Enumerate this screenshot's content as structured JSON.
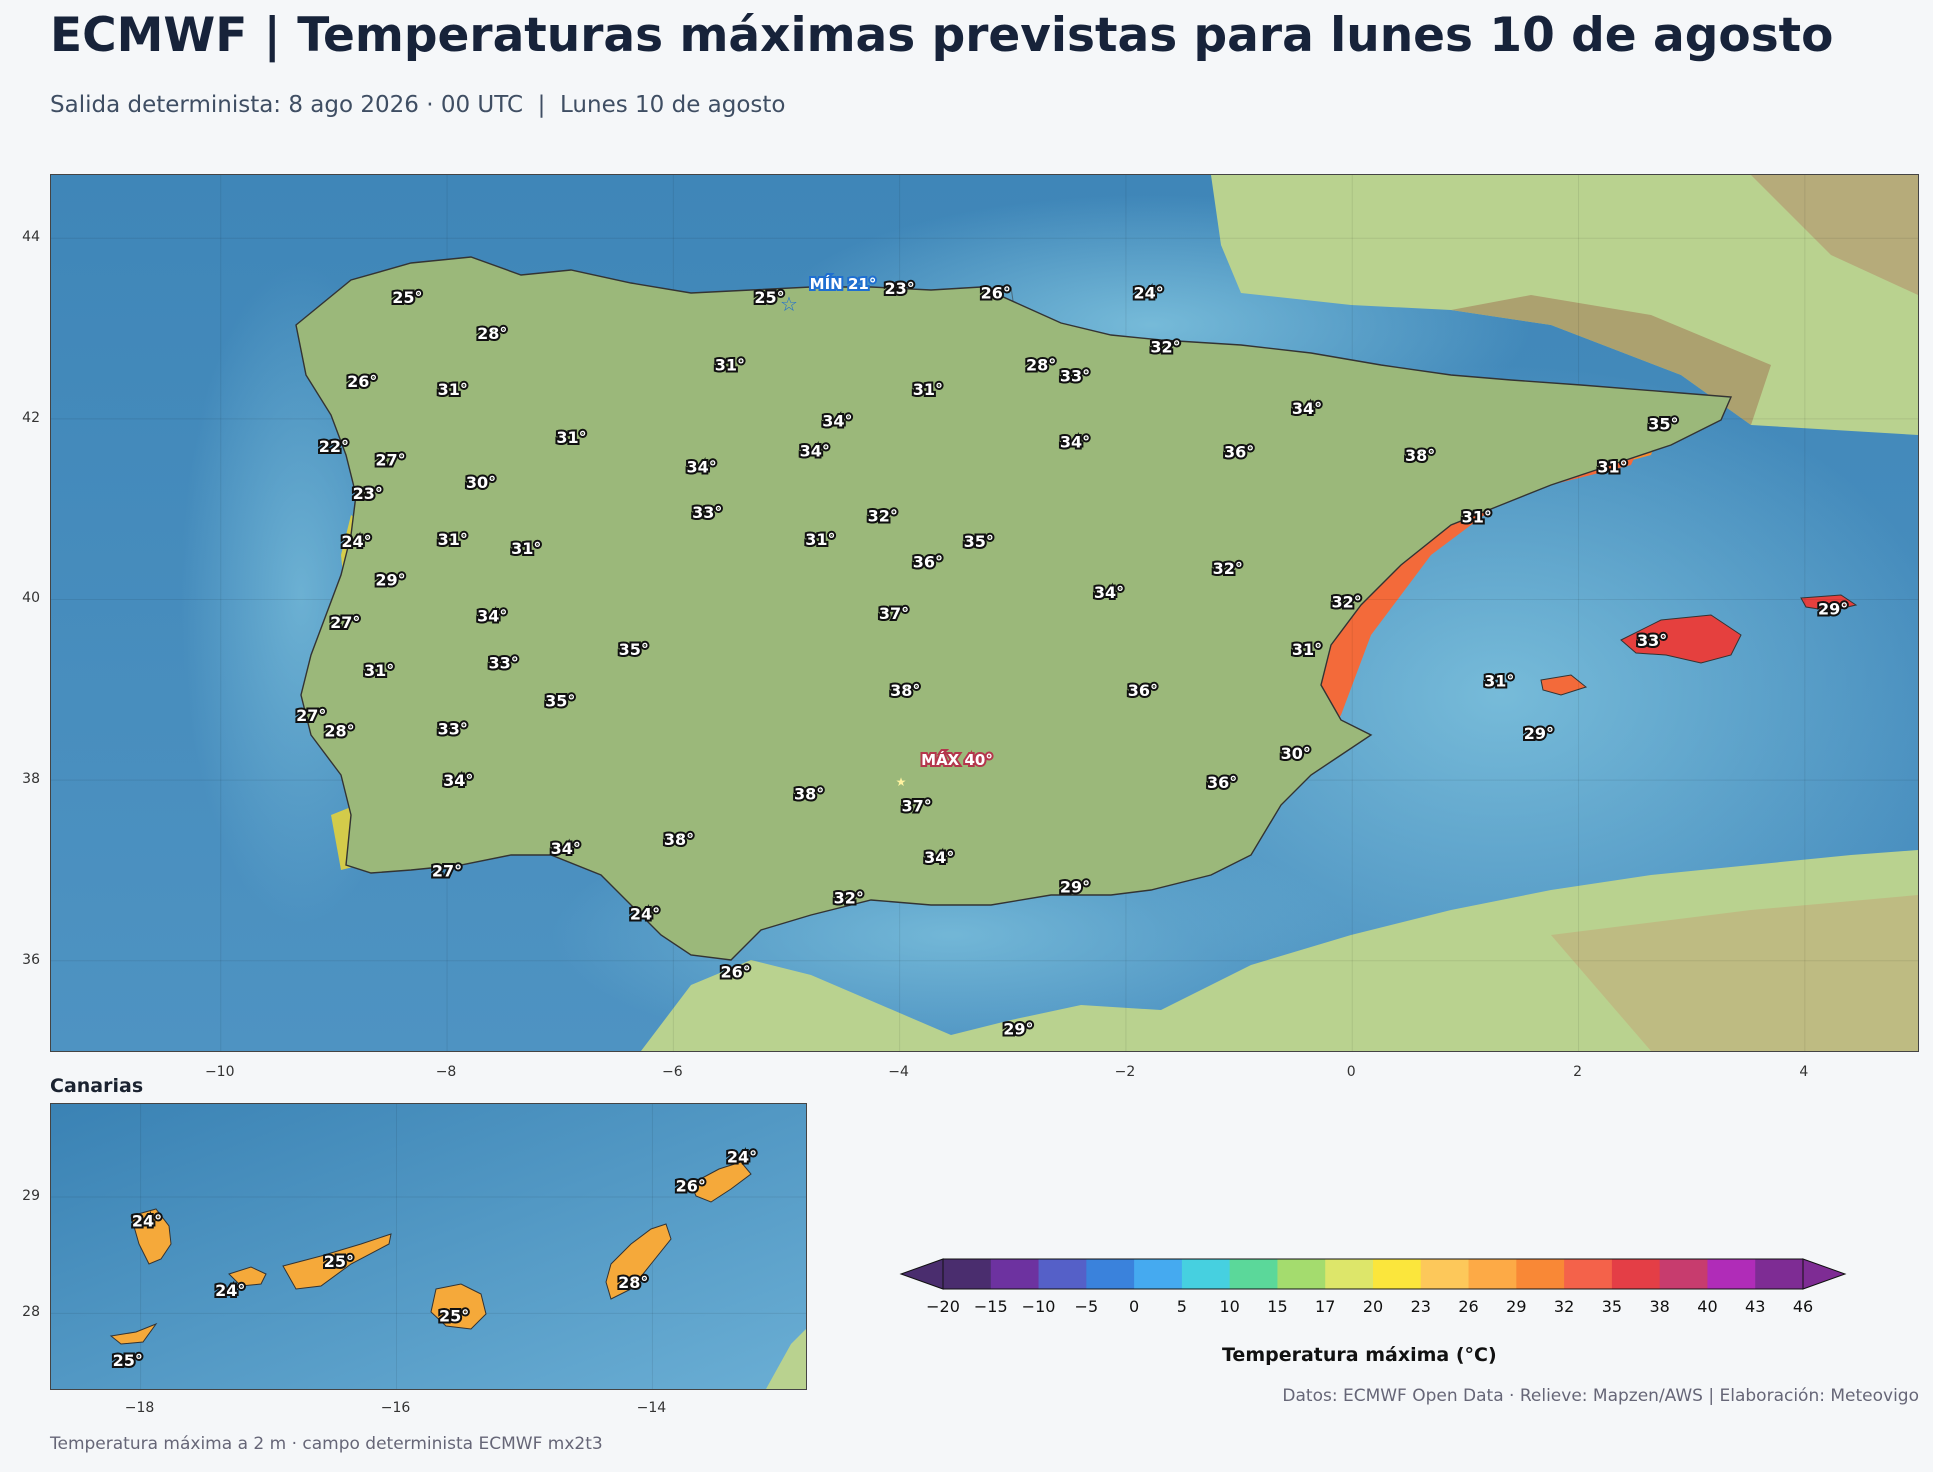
{
  "header": {
    "title": "ECMWF | Temperaturas máximas previstas para lunes 10 de agosto",
    "subtitle": "Salida determinista: 8 ago 2026 · 00 UTC  |  Lunes 10 de agosto"
  },
  "main_map": {
    "x_ticks": [
      "−10",
      "−8",
      "−6",
      "−4",
      "−2",
      "0",
      "2",
      "4"
    ],
    "y_ticks": [
      "44",
      "42",
      "40",
      "38",
      "36"
    ],
    "extremes": {
      "min_label": "MÍN 21°",
      "max_label": "MÁX 40°"
    },
    "labels": [
      {
        "lon": -8.35,
        "lat": 43.35,
        "text": "25°"
      },
      {
        "lon": -5.15,
        "lat": 43.35,
        "text": "25°"
      },
      {
        "lon": -4.0,
        "lat": 43.45,
        "text": "23°"
      },
      {
        "lon": -3.15,
        "lat": 43.4,
        "text": "26°"
      },
      {
        "lon": -1.8,
        "lat": 43.4,
        "text": "24°"
      },
      {
        "lon": -7.6,
        "lat": 42.95,
        "text": "28°"
      },
      {
        "lon": -1.65,
        "lat": 42.8,
        "text": "32°"
      },
      {
        "lon": -5.5,
        "lat": 42.6,
        "text": "31°"
      },
      {
        "lon": -2.75,
        "lat": 42.6,
        "text": "28°"
      },
      {
        "lon": -2.45,
        "lat": 42.48,
        "text": "33°"
      },
      {
        "lon": -8.75,
        "lat": 42.42,
        "text": "26°"
      },
      {
        "lon": -7.95,
        "lat": 42.33,
        "text": "31°"
      },
      {
        "lon": -3.75,
        "lat": 42.33,
        "text": "31°"
      },
      {
        "lon": -0.4,
        "lat": 42.12,
        "text": "34°"
      },
      {
        "lon": 2.75,
        "lat": 41.95,
        "text": "35°"
      },
      {
        "lon": -4.55,
        "lat": 41.98,
        "text": "34°"
      },
      {
        "lon": -6.9,
        "lat": 41.8,
        "text": "31°"
      },
      {
        "lon": -2.45,
        "lat": 41.75,
        "text": "34°"
      },
      {
        "lon": -9.0,
        "lat": 41.7,
        "text": "22°"
      },
      {
        "lon": -1.0,
        "lat": 41.64,
        "text": "36°"
      },
      {
        "lon": 0.6,
        "lat": 41.6,
        "text": "38°"
      },
      {
        "lon": -4.75,
        "lat": 41.65,
        "text": "34°"
      },
      {
        "lon": -8.5,
        "lat": 41.55,
        "text": "27°"
      },
      {
        "lon": -5.75,
        "lat": 41.47,
        "text": "34°"
      },
      {
        "lon": 2.3,
        "lat": 41.47,
        "text": "31°"
      },
      {
        "lon": -7.7,
        "lat": 41.3,
        "text": "30°"
      },
      {
        "lon": -8.7,
        "lat": 41.18,
        "text": "23°"
      },
      {
        "lon": -5.7,
        "lat": 40.97,
        "text": "33°"
      },
      {
        "lon": -4.15,
        "lat": 40.93,
        "text": "32°"
      },
      {
        "lon": 1.1,
        "lat": 40.92,
        "text": "31°"
      },
      {
        "lon": -8.8,
        "lat": 40.65,
        "text": "24°"
      },
      {
        "lon": -7.95,
        "lat": 40.67,
        "text": "31°"
      },
      {
        "lon": -4.7,
        "lat": 40.67,
        "text": "31°"
      },
      {
        "lon": -3.3,
        "lat": 40.65,
        "text": "35°"
      },
      {
        "lon": -7.3,
        "lat": 40.57,
        "text": "31°"
      },
      {
        "lon": -3.75,
        "lat": 40.42,
        "text": "36°"
      },
      {
        "lon": -1.1,
        "lat": 40.35,
        "text": "32°"
      },
      {
        "lon": -8.5,
        "lat": 40.22,
        "text": "29°"
      },
      {
        "lon": -2.15,
        "lat": 40.08,
        "text": "34°"
      },
      {
        "lon": -0.05,
        "lat": 39.98,
        "text": "32°"
      },
      {
        "lon": 4.25,
        "lat": 39.9,
        "text": "29°"
      },
      {
        "lon": -4.05,
        "lat": 39.85,
        "text": "37°"
      },
      {
        "lon": -7.6,
        "lat": 39.82,
        "text": "34°"
      },
      {
        "lon": -8.9,
        "lat": 39.75,
        "text": "27°"
      },
      {
        "lon": -6.35,
        "lat": 39.45,
        "text": "35°"
      },
      {
        "lon": -0.4,
        "lat": 39.45,
        "text": "31°"
      },
      {
        "lon": 2.65,
        "lat": 39.55,
        "text": "33°"
      },
      {
        "lon": -7.5,
        "lat": 39.3,
        "text": "33°"
      },
      {
        "lon": -8.6,
        "lat": 39.22,
        "text": "31°"
      },
      {
        "lon": 1.3,
        "lat": 39.1,
        "text": "31°"
      },
      {
        "lon": -3.95,
        "lat": 39.0,
        "text": "38°"
      },
      {
        "lon": -1.85,
        "lat": 39.0,
        "text": "36°"
      },
      {
        "lon": -7.0,
        "lat": 38.88,
        "text": "35°"
      },
      {
        "lon": -9.2,
        "lat": 38.72,
        "text": "27°"
      },
      {
        "lon": -8.95,
        "lat": 38.55,
        "text": "28°"
      },
      {
        "lon": -7.95,
        "lat": 38.57,
        "text": "33°"
      },
      {
        "lon": 1.65,
        "lat": 38.52,
        "text": "29°"
      },
      {
        "lon": -0.5,
        "lat": 38.3,
        "text": "30°"
      },
      {
        "lon": -7.9,
        "lat": 38.0,
        "text": "34°"
      },
      {
        "lon": -1.15,
        "lat": 37.98,
        "text": "36°"
      },
      {
        "lon": -4.8,
        "lat": 37.85,
        "text": "38°"
      },
      {
        "lon": -3.85,
        "lat": 37.72,
        "text": "37°"
      },
      {
        "lon": -5.95,
        "lat": 37.35,
        "text": "38°"
      },
      {
        "lon": -6.95,
        "lat": 37.25,
        "text": "34°"
      },
      {
        "lon": -3.65,
        "lat": 37.15,
        "text": "34°"
      },
      {
        "lon": -8.0,
        "lat": 37.0,
        "text": "27°"
      },
      {
        "lon": -2.45,
        "lat": 36.82,
        "text": "29°"
      },
      {
        "lon": -4.45,
        "lat": 36.7,
        "text": "32°"
      },
      {
        "lon": -6.25,
        "lat": 36.52,
        "text": "24°"
      },
      {
        "lon": -5.45,
        "lat": 35.88,
        "text": "26°"
      },
      {
        "lon": -2.95,
        "lat": 35.25,
        "text": "29°"
      }
    ]
  },
  "inset": {
    "title": "Canarias",
    "x_ticks": [
      "−18",
      "−16",
      "−14"
    ],
    "y_ticks": [
      "29",
      "28"
    ],
    "labels": [
      {
        "lon": -13.3,
        "lat": 29.35,
        "text": "24°"
      },
      {
        "lon": -13.7,
        "lat": 29.1,
        "text": "26°"
      },
      {
        "lon": -17.95,
        "lat": 28.8,
        "text": "24°"
      },
      {
        "lon": -16.45,
        "lat": 28.45,
        "text": "25°"
      },
      {
        "lon": -17.3,
        "lat": 28.2,
        "text": "24°"
      },
      {
        "lon": -14.15,
        "lat": 28.27,
        "text": "28°"
      },
      {
        "lon": -15.55,
        "lat": 27.98,
        "text": "25°"
      },
      {
        "lon": -18.1,
        "lat": 27.6,
        "text": "25°"
      }
    ]
  },
  "colorbar": {
    "title": "Temperatura máxima (°C)",
    "ticks": [
      "−20",
      "−15",
      "−10",
      "−5",
      "0",
      "5",
      "10",
      "15",
      "17",
      "20",
      "23",
      "26",
      "29",
      "32",
      "35",
      "38",
      "40",
      "43",
      "46"
    ],
    "colors": [
      "#4a2d6e",
      "#6d32a0",
      "#5560c8",
      "#3a82dc",
      "#45aaf0",
      "#46d0e0",
      "#5bd89a",
      "#a4dc6e",
      "#dde66a",
      "#fbe63c",
      "#fdc85a",
      "#fdaa46",
      "#f98836",
      "#f4624a",
      "#e43e46",
      "#c73c6e",
      "#b02cb8",
      "#7e2c94"
    ]
  },
  "credits": "Datos: ECMWF Open Data · Relieve: Mapzen/AWS  |  Elaboración: Meteovigo",
  "footnote": "Temperatura máxima a 2 m · campo determinista ECMWF mx2t3"
}
